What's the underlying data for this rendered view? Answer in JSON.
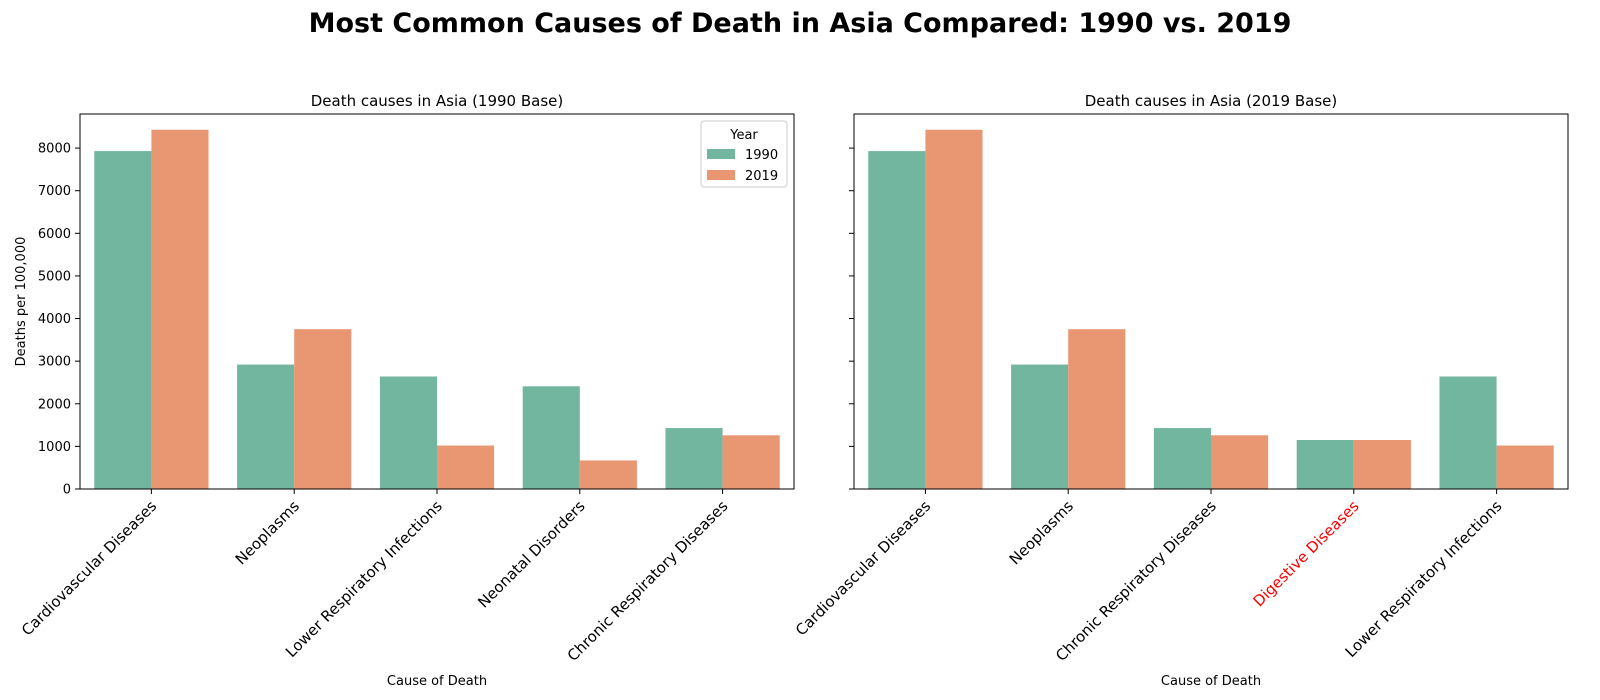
{
  "figure": {
    "title": "Most Common Causes of Death in Asia Compared: 1990 vs. 2019"
  },
  "colors": {
    "series_1990": "#73b6a0",
    "series_2019": "#e99673",
    "highlight_label": "#ff0000"
  },
  "chart_data": [
    {
      "type": "bar",
      "title": "Death causes in Asia (1990 Base)",
      "xlabel": "Cause of Death",
      "ylabel": "Deaths per 100,000",
      "ylim": [
        0,
        8800
      ],
      "yticks": [
        0,
        1000,
        2000,
        3000,
        4000,
        5000,
        6000,
        7000,
        8000
      ],
      "categories": [
        "Cardiovascular Diseases",
        "Neoplasms",
        "Lower Respiratory Infections",
        "Neonatal Disorders",
        "Chronic Respiratory Diseases"
      ],
      "highlight_categories": [],
      "series": [
        {
          "name": "1990",
          "values": [
            7930,
            2920,
            2640,
            2410,
            1430
          ]
        },
        {
          "name": "2019",
          "values": [
            8430,
            3750,
            1020,
            670,
            1260
          ]
        }
      ],
      "legend": {
        "title": "Year",
        "position": "upper right"
      },
      "grid": false
    },
    {
      "type": "bar",
      "title": "Death causes in Asia (2019 Base)",
      "xlabel": "Cause of Death",
      "ylabel": "",
      "ylim": [
        0,
        8800
      ],
      "yticks": [
        0,
        1000,
        2000,
        3000,
        4000,
        5000,
        6000,
        7000,
        8000
      ],
      "show_ytick_labels": false,
      "categories": [
        "Cardiovascular Diseases",
        "Neoplasms",
        "Chronic Respiratory Diseases",
        "Digestive Diseases",
        "Lower Respiratory Infections"
      ],
      "highlight_categories": [
        "Digestive Diseases"
      ],
      "series": [
        {
          "name": "1990",
          "values": [
            7930,
            2920,
            1430,
            1150,
            2640
          ]
        },
        {
          "name": "2019",
          "values": [
            8430,
            3750,
            1260,
            1150,
            1020
          ]
        }
      ],
      "legend": null,
      "grid": false
    }
  ]
}
